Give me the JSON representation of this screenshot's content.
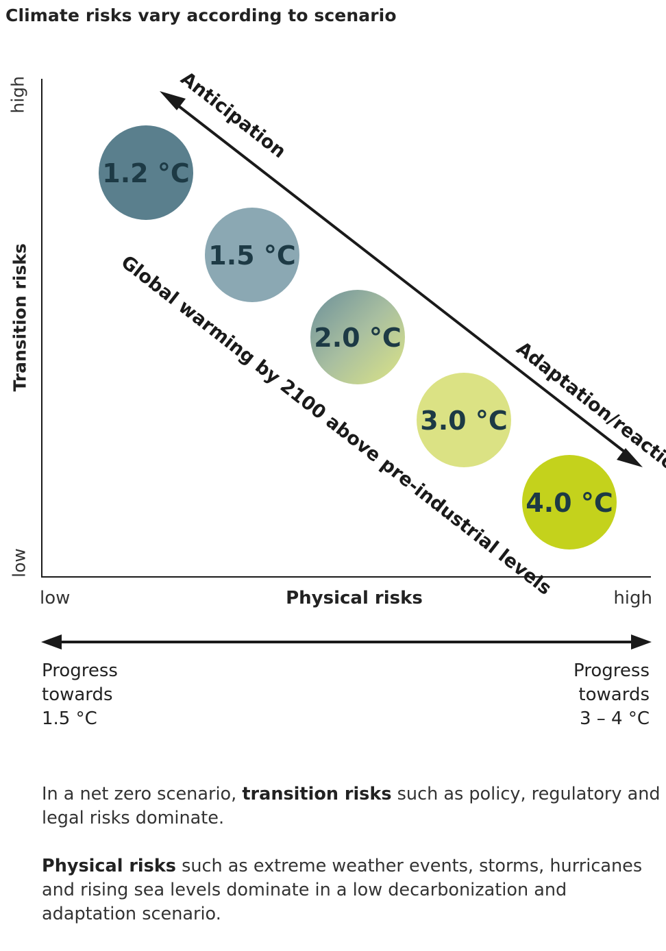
{
  "title": "Climate risks vary according to scenario",
  "y_axis": {
    "title": "Transition risks",
    "high": "high",
    "low": "low"
  },
  "x_axis": {
    "title": "Physical risks",
    "low": "low",
    "high": "high"
  },
  "arrows": {
    "anticipation": "Anticipation",
    "adaptation": "Adaptation/reaction",
    "warming_label": "Global warming by 2100 above pre-industrial levels"
  },
  "scenarios": [
    {
      "label": "1.2 °C",
      "color": "#5a7f8d"
    },
    {
      "label": "1.5 °C",
      "color": "#8ba8b3"
    },
    {
      "label": "2.0 °C",
      "color": "#a9bfa0"
    },
    {
      "label": "3.0 °C",
      "color": "#dbe284"
    },
    {
      "label": "4.0 °C",
      "color": "#c4d21c"
    }
  ],
  "progress": {
    "left": [
      "Progress",
      "towards",
      "1.5 °C"
    ],
    "right": [
      "Progress",
      "towards",
      "3 – 4 °C"
    ]
  },
  "paragraphs": {
    "p1": {
      "before": "In a net zero scenario, ",
      "bold": "transition risks",
      "after": " such as policy, regulatory and legal risks dominate."
    },
    "p2": {
      "bold": "Physical risks",
      "after": " such as extreme weather events, storms, hurricanes and rising sea levels dominate in a low decarbonization and adaptation scenario."
    }
  }
}
